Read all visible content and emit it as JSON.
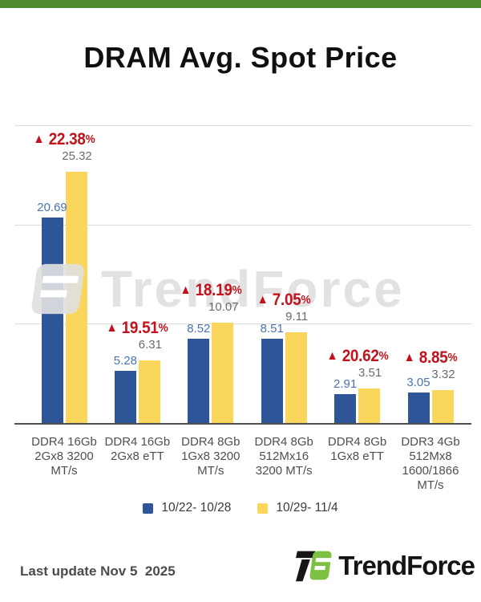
{
  "title": "DRAM Avg. Spot Price",
  "topbar_color": "#4e8b2d",
  "watermark": {
    "text": "TrendForce"
  },
  "legend": [
    {
      "label": "10/22- 10/28",
      "color": "#2e5597"
    },
    {
      "label": "10/29- 11/4",
      "color": "#fbd65c"
    }
  ],
  "footer": {
    "last_update": "Last update Nov 5  2025",
    "brand": "TrendForce"
  },
  "chart_data": {
    "type": "bar",
    "title": "DRAM Avg. Spot Price",
    "categories": [
      "DDR4 16Gb 2Gx8 3200 MT/s",
      "DDR4 16Gb 2Gx8 eTT",
      "DDR4 8Gb 1Gx8 3200 MT/s",
      "DDR4 8Gb 512Mx16 3200 MT/s",
      "DDR4 8Gb 1Gx8 eTT",
      "DDR3 4Gb 512Mx8 1600/1866 MT/s"
    ],
    "series": [
      {
        "name": "10/22- 10/28",
        "color": "#2e5597",
        "values": [
          20.69,
          5.28,
          8.52,
          8.51,
          2.91,
          3.05
        ]
      },
      {
        "name": "10/29- 11/4",
        "color": "#fbd65c",
        "values": [
          25.32,
          6.31,
          10.07,
          9.11,
          3.51,
          3.32
        ]
      }
    ],
    "change_arrow": "▲",
    "change_pct": [
      "22.38%",
      "19.51%",
      "18.19%",
      "7.05%",
      "20.62%",
      "8.85%"
    ],
    "change_color": "#c2121c",
    "value_label_colors": [
      "#4a74b0",
      "#6b6b6b"
    ],
    "ylim": [
      0,
      30
    ],
    "gridline_values": [
      10,
      20,
      30
    ],
    "grid": true,
    "legend_position": "bottom"
  }
}
